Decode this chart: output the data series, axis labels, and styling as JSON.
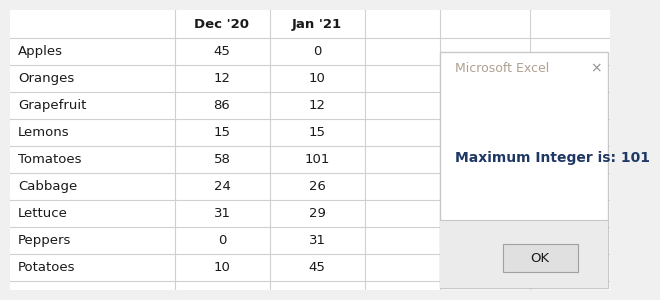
{
  "table_labels": [
    "Apples",
    "Oranges",
    "Grapefruit",
    "Lemons",
    "Tomatoes",
    "Cabbage",
    "Lettuce",
    "Peppers",
    "Potatoes"
  ],
  "col_dec": [
    45,
    12,
    86,
    15,
    58,
    24,
    31,
    0,
    10
  ],
  "col_jan": [
    0,
    10,
    12,
    15,
    101,
    26,
    29,
    31,
    45
  ],
  "col_header_dec": "Dec '20",
  "col_header_jan": "Jan '21",
  "table_bg": "#ffffff",
  "excel_bg": "#f0f0f0",
  "grid_color": "#d0d0d0",
  "header_text_color": "#1a1a1a",
  "data_text_color": "#1a1a1a",
  "label_text_color": "#1a1a1a",
  "dialog_bg": "#ffffff",
  "dialog_title": "Microsoft Excel",
  "dialog_title_color": "#b0a090",
  "dialog_message": "Maximum Integer is: 101",
  "dialog_msg_color": "#1f3864",
  "ok_btn_text": "OK",
  "ok_btn_color": "#1a1a1a",
  "close_x_color": "#909090",
  "dialog_border_color": "#c8c8c8",
  "dialog_footer_color": "#ebebeb",
  "ok_btn_bg": "#e0e0e0",
  "ok_btn_border": "#a0a0a0"
}
